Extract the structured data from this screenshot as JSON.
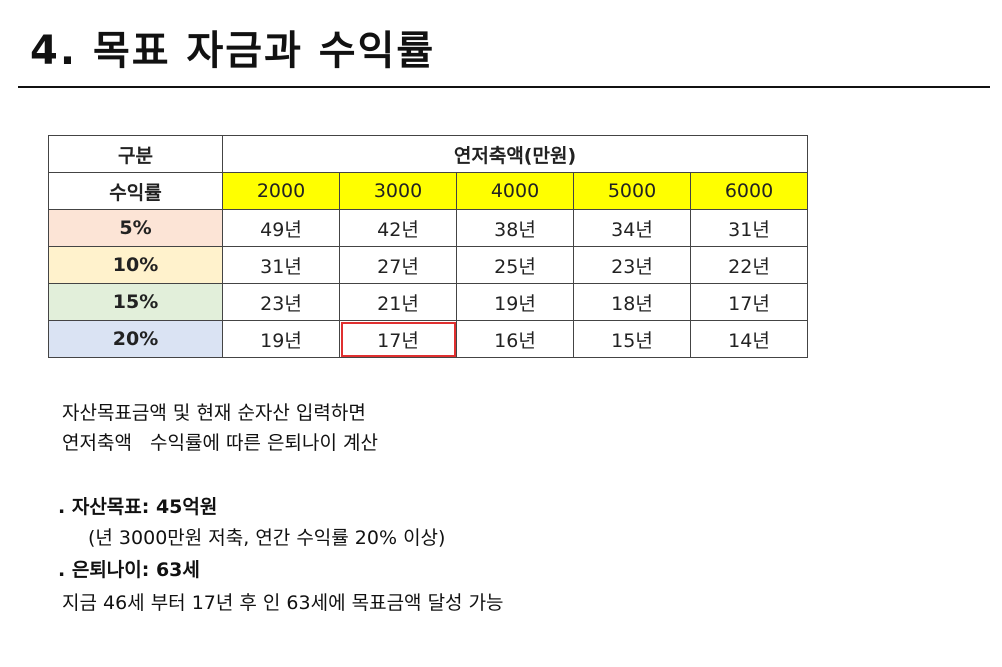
{
  "title": "4. 목표 자금과 수익률",
  "table": {
    "corner_top": "구분",
    "group_header": "연저축액(만원)",
    "corner_bottom": "수익률",
    "columns": [
      "2000",
      "3000",
      "4000",
      "5000",
      "6000"
    ],
    "rows": [
      {
        "label": "5%",
        "values": [
          "49년",
          "42년",
          "38년",
          "34년",
          "31년"
        ]
      },
      {
        "label": "10%",
        "values": [
          "31년",
          "27년",
          "25년",
          "23년",
          "22년"
        ]
      },
      {
        "label": "15%",
        "values": [
          "23년",
          "21년",
          "19년",
          "18년",
          "17년"
        ]
      },
      {
        "label": "20%",
        "values": [
          "19년",
          "17년",
          "16년",
          "15년",
          "14년"
        ]
      }
    ]
  },
  "notes": [
    "자산목표금액 및 현재 순자산 입력하면",
    "연저축액   수익률에 따른 은퇴나이 계산",
    ". 자산목표: 45억원",
    "(년 3000만원 저축, 연간 수익률 20% 이상)",
    ". 은퇴나이: 63세",
    "지금 46세 부터 17년 후 인 63세에 목표금액 달성 가능"
  ]
}
